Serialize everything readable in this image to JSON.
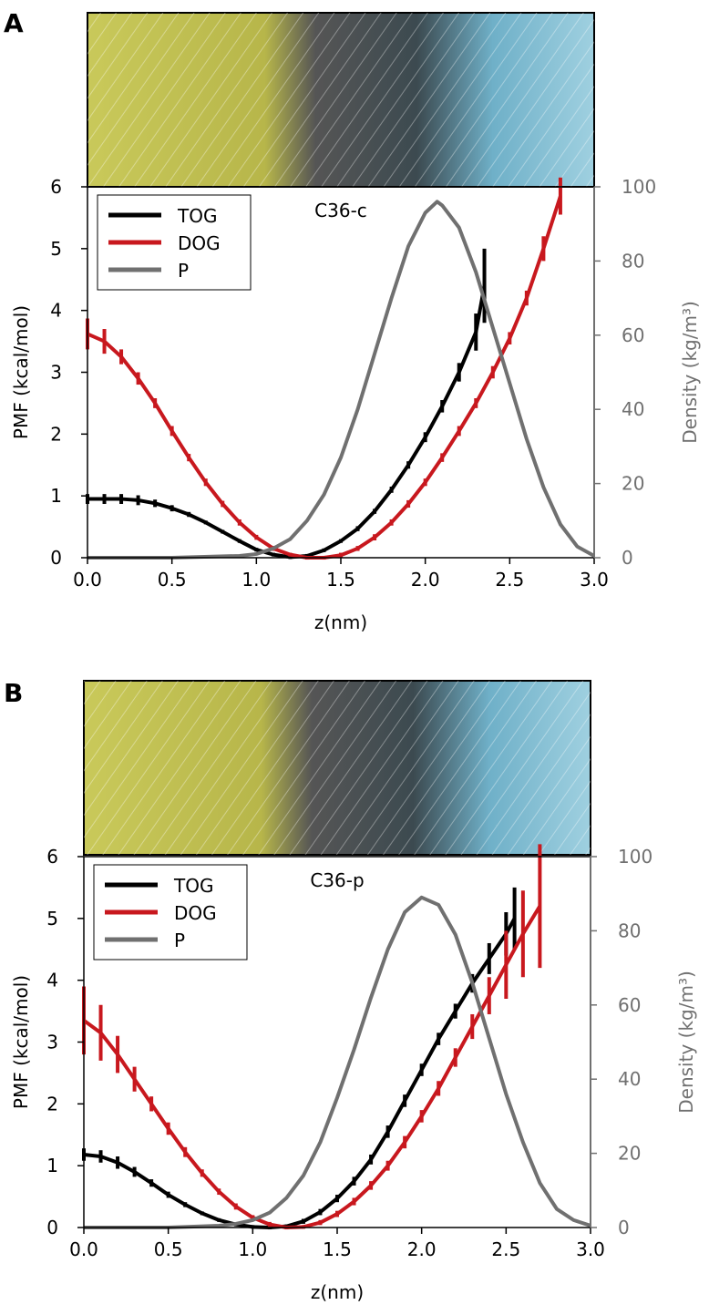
{
  "chart_data": [
    {
      "type": "line",
      "panel_label": "A",
      "title": "C36-c",
      "xlabel": "z(nm)",
      "ylabel": "PMF (kcal/mol)",
      "y2label": "Density (kg/m³)",
      "xlim": [
        0,
        3
      ],
      "ylim": [
        0,
        6
      ],
      "y2lim": [
        0,
        100
      ],
      "xticks": [
        {
          "value": 0,
          "label": "0.0"
        },
        {
          "value": 0.5,
          "label": "0.5"
        },
        {
          "value": 1,
          "label": "1.0"
        },
        {
          "value": 1.5,
          "label": "1.5"
        },
        {
          "value": 2,
          "label": "2.0"
        },
        {
          "value": 2.5,
          "label": "2.5"
        },
        {
          "value": 3,
          "label": "3.0"
        }
      ],
      "yticks": [
        0,
        1,
        2,
        3,
        4,
        5,
        6
      ],
      "y2ticks": [
        0,
        20,
        40,
        60,
        80,
        100
      ],
      "series": [
        {
          "name": "TOG",
          "color": "#000000",
          "x": [
            0,
            0.1,
            0.2,
            0.3,
            0.4,
            0.5,
            0.6,
            0.7,
            0.8,
            0.9,
            1.0,
            1.1,
            1.2,
            1.3,
            1.4,
            1.5,
            1.6,
            1.7,
            1.8,
            1.9,
            2.0,
            2.1,
            2.2,
            2.3,
            2.35
          ],
          "values": [
            0.95,
            0.95,
            0.95,
            0.93,
            0.88,
            0.8,
            0.7,
            0.57,
            0.42,
            0.27,
            0.13,
            0.05,
            0.01,
            0.03,
            0.12,
            0.27,
            0.47,
            0.75,
            1.1,
            1.5,
            1.95,
            2.45,
            3.0,
            3.65,
            4.4
          ],
          "errors": [
            0.08,
            0.08,
            0.08,
            0.08,
            0.06,
            0.05,
            0.04,
            0.03,
            0.03,
            0.03,
            0.03,
            0.03,
            0.03,
            0.03,
            0.03,
            0.03,
            0.04,
            0.04,
            0.05,
            0.06,
            0.08,
            0.1,
            0.15,
            0.3,
            0.6
          ]
        },
        {
          "name": "DOG",
          "color": "#c8181e",
          "x": [
            0,
            0.1,
            0.2,
            0.3,
            0.4,
            0.5,
            0.6,
            0.7,
            0.8,
            0.9,
            1.0,
            1.1,
            1.2,
            1.3,
            1.4,
            1.5,
            1.6,
            1.7,
            1.8,
            1.9,
            2.0,
            2.1,
            2.2,
            2.3,
            2.4,
            2.5,
            2.6,
            2.7,
            2.8
          ],
          "values": [
            3.62,
            3.5,
            3.25,
            2.9,
            2.5,
            2.05,
            1.62,
            1.22,
            0.87,
            0.57,
            0.33,
            0.15,
            0.05,
            0.0,
            0.0,
            0.04,
            0.15,
            0.33,
            0.57,
            0.87,
            1.22,
            1.62,
            2.05,
            2.5,
            3.0,
            3.55,
            4.2,
            5.0,
            5.85
          ],
          "errors": [
            0.25,
            0.2,
            0.12,
            0.1,
            0.08,
            0.08,
            0.06,
            0.06,
            0.05,
            0.05,
            0.04,
            0.04,
            0.03,
            0.03,
            0.03,
            0.04,
            0.04,
            0.05,
            0.05,
            0.06,
            0.06,
            0.07,
            0.08,
            0.08,
            0.1,
            0.1,
            0.12,
            0.2,
            0.3
          ]
        },
        {
          "name": "P",
          "color": "#707070",
          "axis": "y2",
          "x": [
            0,
            0.5,
            0.9,
            1.0,
            1.1,
            1.2,
            1.3,
            1.4,
            1.5,
            1.6,
            1.7,
            1.8,
            1.9,
            2.0,
            2.07,
            2.1,
            2.2,
            2.3,
            2.4,
            2.5,
            2.6,
            2.7,
            2.8,
            2.9,
            3.0
          ],
          "values": [
            0,
            0,
            0.5,
            1,
            2.5,
            5,
            10,
            17,
            27,
            40,
            55,
            70,
            84,
            93,
            96,
            95,
            89,
            77,
            62,
            47,
            32,
            19,
            9,
            3,
            0.5
          ]
        }
      ]
    },
    {
      "type": "line",
      "panel_label": "B",
      "title": "C36-p",
      "xlabel": "z(nm)",
      "ylabel": "PMF (kcal/mol)",
      "y2label": "Density (kg/m³)",
      "xlim": [
        0,
        3
      ],
      "ylim": [
        0,
        6
      ],
      "y2lim": [
        0,
        100
      ],
      "xticks": [
        {
          "value": 0,
          "label": "0.0"
        },
        {
          "value": 0.5,
          "label": "0.5"
        },
        {
          "value": 1,
          "label": "1.0"
        },
        {
          "value": 1.5,
          "label": "1.5"
        },
        {
          "value": 2,
          "label": "2.0"
        },
        {
          "value": 2.5,
          "label": "2.5"
        },
        {
          "value": 3,
          "label": "3.0"
        }
      ],
      "yticks": [
        0,
        1,
        2,
        3,
        4,
        5,
        6
      ],
      "y2ticks": [
        0,
        20,
        40,
        60,
        80,
        100
      ],
      "series": [
        {
          "name": "TOG",
          "color": "#000000",
          "x": [
            0,
            0.1,
            0.2,
            0.3,
            0.4,
            0.5,
            0.6,
            0.7,
            0.8,
            0.9,
            1.0,
            1.1,
            1.2,
            1.3,
            1.4,
            1.5,
            1.6,
            1.7,
            1.8,
            1.9,
            2.0,
            2.1,
            2.2,
            2.3,
            2.4,
            2.5,
            2.55
          ],
          "values": [
            1.18,
            1.15,
            1.05,
            0.9,
            0.72,
            0.53,
            0.37,
            0.23,
            0.12,
            0.05,
            0.01,
            0.0,
            0.02,
            0.1,
            0.25,
            0.47,
            0.75,
            1.1,
            1.55,
            2.05,
            2.55,
            3.05,
            3.5,
            3.95,
            4.35,
            4.75,
            5.0
          ],
          "errors": [
            0.1,
            0.1,
            0.1,
            0.08,
            0.06,
            0.05,
            0.04,
            0.03,
            0.03,
            0.03,
            0.03,
            0.03,
            0.03,
            0.04,
            0.05,
            0.06,
            0.07,
            0.08,
            0.1,
            0.1,
            0.1,
            0.1,
            0.12,
            0.15,
            0.25,
            0.35,
            0.5
          ]
        },
        {
          "name": "DOG",
          "color": "#c8181e",
          "x": [
            0,
            0.1,
            0.2,
            0.3,
            0.4,
            0.5,
            0.6,
            0.7,
            0.8,
            0.9,
            1.0,
            1.1,
            1.2,
            1.3,
            1.4,
            1.5,
            1.6,
            1.7,
            1.8,
            1.9,
            2.0,
            2.1,
            2.2,
            2.3,
            2.4,
            2.5,
            2.6,
            2.7
          ],
          "values": [
            3.35,
            3.15,
            2.8,
            2.4,
            2.0,
            1.6,
            1.22,
            0.88,
            0.58,
            0.34,
            0.16,
            0.05,
            0.0,
            0.01,
            0.08,
            0.22,
            0.42,
            0.68,
            1.0,
            1.38,
            1.8,
            2.25,
            2.75,
            3.25,
            3.75,
            4.25,
            4.75,
            5.2
          ],
          "errors": [
            0.55,
            0.45,
            0.3,
            0.2,
            0.12,
            0.1,
            0.08,
            0.06,
            0.05,
            0.05,
            0.04,
            0.04,
            0.03,
            0.03,
            0.04,
            0.05,
            0.06,
            0.07,
            0.08,
            0.1,
            0.1,
            0.12,
            0.15,
            0.2,
            0.3,
            0.55,
            0.7,
            1.0
          ]
        },
        {
          "name": "P",
          "color": "#707070",
          "axis": "y2",
          "x": [
            0,
            0.5,
            0.8,
            0.9,
            1.0,
            1.1,
            1.2,
            1.3,
            1.4,
            1.5,
            1.6,
            1.7,
            1.8,
            1.9,
            2.0,
            2.1,
            2.2,
            2.3,
            2.4,
            2.5,
            2.6,
            2.7,
            2.8,
            2.9,
            3.0
          ],
          "values": [
            0,
            0,
            0.5,
            1,
            2,
            4,
            8,
            14,
            23,
            35,
            48,
            62,
            75,
            85,
            89,
            87,
            79,
            66,
            51,
            36,
            23,
            12,
            5,
            2,
            0.5
          ]
        }
      ]
    }
  ]
}
